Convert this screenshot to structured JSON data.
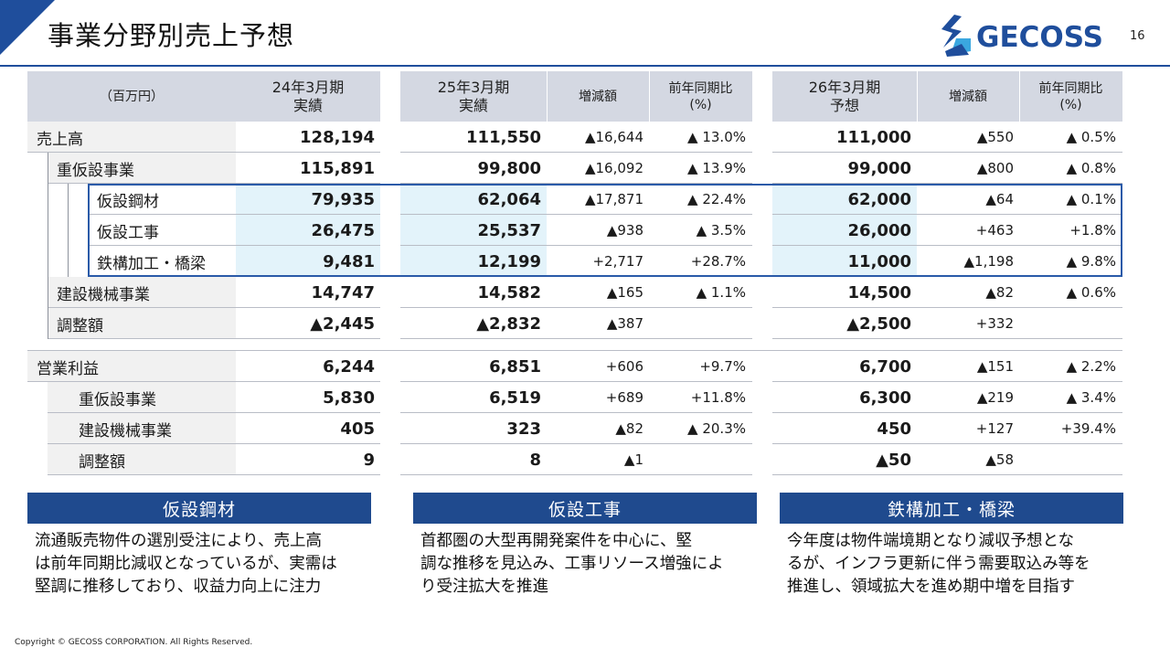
{
  "page": {
    "title": "事業分野別売上予想",
    "page_number": "16",
    "logo_text": "GECOSS",
    "copyright": "Copyright © GECOSS CORPORATION. All Rights Reserved.",
    "colors": {
      "navy": "#1f4a8e",
      "header_gray": "#d4d8e2",
      "highlight": "#e3f3fa"
    }
  },
  "table": {
    "headers": {
      "unit": "（百万円）",
      "fy24": [
        "24年3月期",
        "実績"
      ],
      "fy25": [
        "25年3月期",
        "実績"
      ],
      "chg25": "増減額",
      "yoy25": [
        "前年同期比",
        "(%)"
      ],
      "fy26": [
        "26年3月期",
        "予想"
      ],
      "chg26": "増減額",
      "yoy26": [
        "前年同期比",
        "(%)"
      ]
    },
    "rows": [
      {
        "label": "売上高",
        "indent": 0,
        "fy24": "128,194",
        "fy25": "111,550",
        "chg25": "▲16,644",
        "yoy25": "▲ 13.0%",
        "fy26": "111,000",
        "chg26": "▲550",
        "yoy26": "▲ 0.5%"
      },
      {
        "label": "重仮設事業",
        "indent": 1,
        "fy24": "115,891",
        "fy25": "99,800",
        "chg25": "▲16,092",
        "yoy25": "▲ 13.9%",
        "fy26": "99,000",
        "chg26": "▲800",
        "yoy26": "▲ 0.8%"
      },
      {
        "label": "仮設鋼材",
        "indent": 2,
        "fy24": "79,935",
        "fy25": "62,064",
        "chg25": "▲17,871",
        "yoy25": "▲ 22.4%",
        "fy26": "62,000",
        "chg26": "▲64",
        "yoy26": "▲ 0.1%"
      },
      {
        "label": "仮設工事",
        "indent": 2,
        "fy24": "26,475",
        "fy25": "25,537",
        "chg25": "▲938",
        "yoy25": "▲ 3.5%",
        "fy26": "26,000",
        "chg26": "+463",
        "yoy26": "+1.8%"
      },
      {
        "label": "鉄構加工・橋梁",
        "indent": 2,
        "fy24": "9,481",
        "fy25": "12,199",
        "chg25": "+2,717",
        "yoy25": "+28.7%",
        "fy26": "11,000",
        "chg26": "▲1,198",
        "yoy26": "▲ 9.8%"
      },
      {
        "label": "建設機械事業",
        "indent": 1,
        "fy24": "14,747",
        "fy25": "14,582",
        "chg25": "▲165",
        "yoy25": "▲ 1.1%",
        "fy26": "14,500",
        "chg26": "▲82",
        "yoy26": "▲ 0.6%"
      },
      {
        "label": "調整額",
        "indent": 1,
        "fy24": "▲2,445",
        "fy25": "▲2,832",
        "chg25": "▲387",
        "yoy25": "",
        "fy26": "▲2,500",
        "chg26": "+332",
        "yoy26": ""
      },
      {
        "label": "営業利益",
        "indent": 0,
        "fy24": "6,244",
        "fy25": "6,851",
        "chg25": "+606",
        "yoy25": "+9.7%",
        "fy26": "6,700",
        "chg26": "▲151",
        "yoy26": "▲ 2.2%"
      },
      {
        "label": "重仮設事業",
        "indent": 1,
        "fy24": "5,830",
        "fy25": "6,519",
        "chg25": "+689",
        "yoy25": "+11.8%",
        "fy26": "6,300",
        "chg26": "▲219",
        "yoy26": "▲ 3.4%"
      },
      {
        "label": "建設機械事業",
        "indent": 1,
        "fy24": "405",
        "fy25": "323",
        "chg25": "▲82",
        "yoy25": "▲ 20.3%",
        "fy26": "450",
        "chg26": "+127",
        "yoy26": "+39.4%"
      },
      {
        "label": "調整額",
        "indent": 1,
        "fy24": "9",
        "fy25": "8",
        "chg25": "▲1",
        "yoy25": "",
        "fy26": "▲50",
        "chg26": "▲58",
        "yoy26": ""
      }
    ]
  },
  "sections": [
    {
      "title": "仮設鋼材",
      "lines": [
        "流通販売物件の選別受注により、売上高",
        "は前年同期比減収となっているが、実需は",
        "堅調に推移しており、収益力向上に注力"
      ]
    },
    {
      "title": "仮設工事",
      "lines": [
        "首都圏の大型再開発案件を中心に、堅",
        "調な推移を見込み、工事リソース増強によ",
        "り受注拡大を推進"
      ]
    },
    {
      "title": "鉄構加工・橋梁",
      "lines": [
        "今年度は物件端境期となり減収予想とな",
        "るが、インフラ更新に伴う需要取込み等を",
        "推進し、領域拡大を進め期中増を目指す"
      ]
    }
  ]
}
